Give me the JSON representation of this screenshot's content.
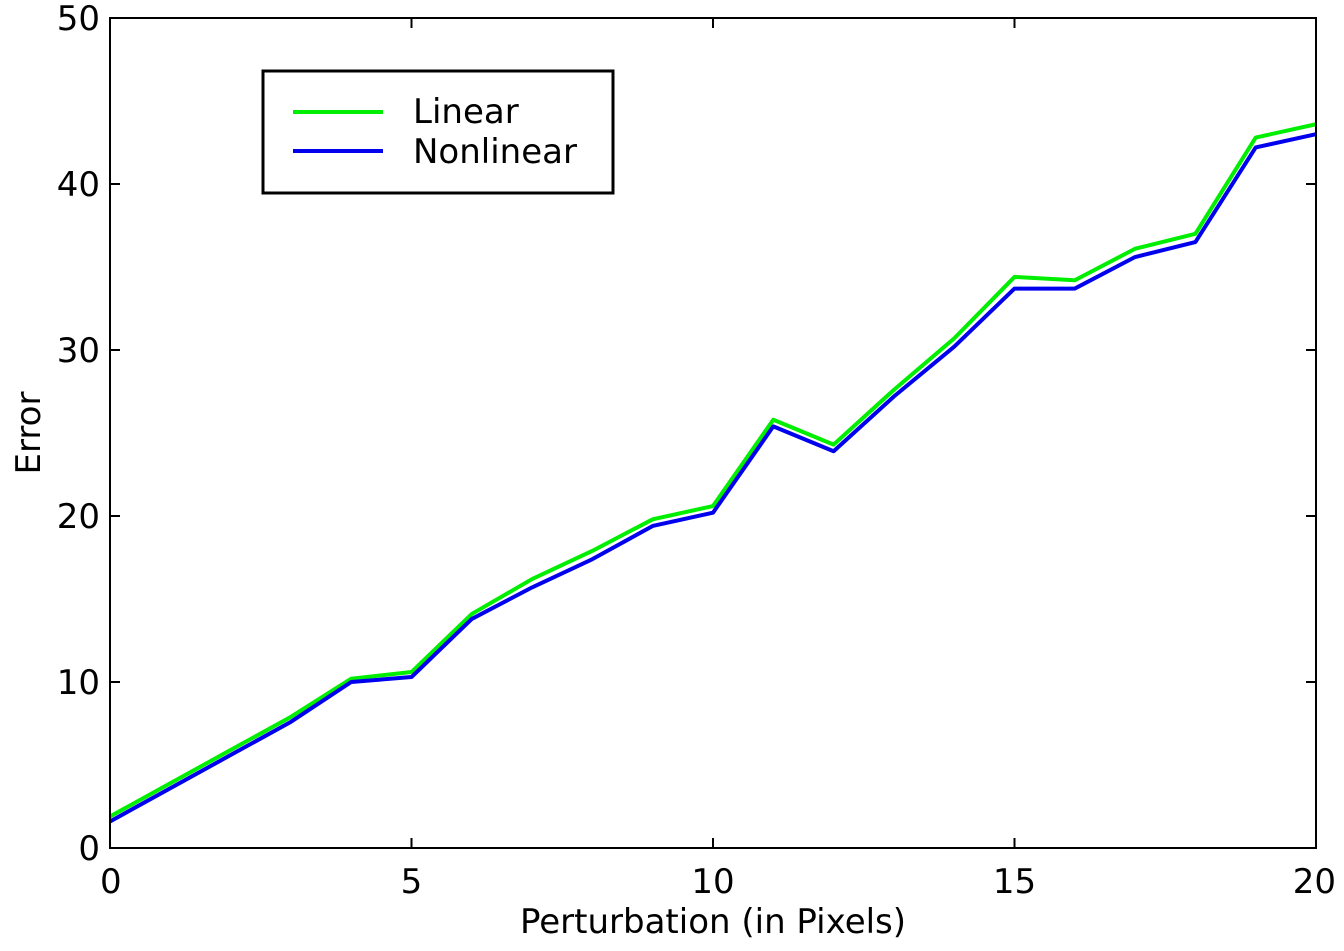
{
  "chart_data": {
    "type": "line",
    "title": "",
    "xlabel": "Perturbation (in Pixels)",
    "ylabel": "Error",
    "xlim": [
      0,
      20
    ],
    "ylim": [
      0,
      50
    ],
    "xticks": [
      0,
      5,
      10,
      15,
      20
    ],
    "yticks": [
      0,
      10,
      20,
      30,
      40,
      50
    ],
    "grid": false,
    "legend_position": "top-left",
    "x": [
      0,
      1,
      2,
      3,
      4,
      5,
      6,
      7,
      8,
      9,
      10,
      11,
      12,
      13,
      14,
      15,
      16,
      17,
      18,
      19,
      20
    ],
    "series": [
      {
        "name": "Linear",
        "color": "#00ee00",
        "values": [
          1.9,
          3.9,
          5.9,
          7.9,
          10.2,
          10.6,
          14.1,
          16.2,
          17.9,
          19.8,
          20.6,
          25.8,
          24.3,
          27.6,
          30.7,
          34.4,
          34.2,
          36.1,
          37.0,
          42.8,
          43.6
        ]
      },
      {
        "name": "Nonlinear",
        "color": "#0000ee",
        "values": [
          1.6,
          3.6,
          5.6,
          7.6,
          10.0,
          10.3,
          13.8,
          15.7,
          17.4,
          19.4,
          20.2,
          25.4,
          23.9,
          27.2,
          30.2,
          33.7,
          33.7,
          35.6,
          36.5,
          42.2,
          43.0
        ]
      }
    ]
  }
}
